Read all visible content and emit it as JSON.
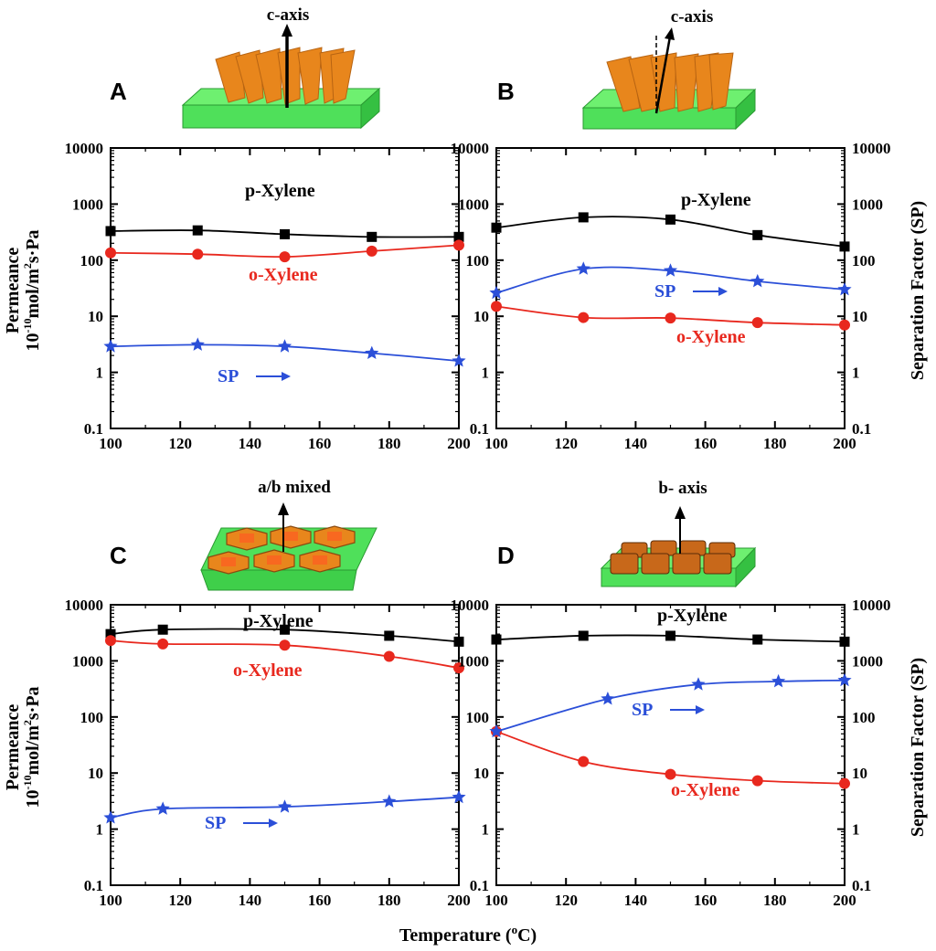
{
  "figure": {
    "xlabel_main": "Temperature (",
    "xlabel_sup": "o",
    "xlabel_end": "C)",
    "left_ylabel_line1": "Permeance",
    "left_ylabel_line2_a": "10",
    "left_ylabel_line2_sup1": "-10",
    "left_ylabel_line2_b": "mol/m",
    "left_ylabel_line2_sup2": "2",
    "left_ylabel_line2_c": "s·Pa",
    "right_ylabel": "Separation Factor (SP)"
  },
  "colors": {
    "p_xylene": "#000000",
    "o_xylene": "#e8281e",
    "sp": "#2b4fd8",
    "substrate": "#4fe05a",
    "crystal": "#e8861c"
  },
  "y_ticks": [
    "10000",
    "1000",
    "100",
    "10",
    "1",
    "0.1"
  ],
  "x_ticks": [
    "100",
    "120",
    "140",
    "160",
    "180",
    "200"
  ],
  "chart_data": [
    {
      "panel": "A",
      "type": "line",
      "orientation_label": "c-axis",
      "xlim": [
        100,
        200
      ],
      "ylim": [
        0.1,
        10000
      ],
      "yscale": "log",
      "series": [
        {
          "name": "p-Xylene",
          "marker": "square",
          "x": [
            100,
            125,
            150,
            175,
            200
          ],
          "values": [
            330,
            340,
            290,
            260,
            260
          ]
        },
        {
          "name": "o-Xylene",
          "marker": "circle",
          "x": [
            100,
            125,
            150,
            175,
            200
          ],
          "values": [
            135,
            128,
            115,
            145,
            185
          ]
        },
        {
          "name": "SP",
          "marker": "star",
          "x": [
            100,
            125,
            150,
            175,
            200
          ],
          "values": [
            2.9,
            3.1,
            2.9,
            2.2,
            1.6
          ]
        }
      ]
    },
    {
      "panel": "B",
      "type": "line",
      "orientation_label": "c-axis",
      "xlim": [
        100,
        200
      ],
      "ylim": [
        0.1,
        10000
      ],
      "yscale": "log",
      "series": [
        {
          "name": "p-Xylene",
          "marker": "square",
          "x": [
            100,
            125,
            150,
            175,
            200
          ],
          "values": [
            380,
            580,
            530,
            280,
            175
          ]
        },
        {
          "name": "o-Xylene",
          "marker": "circle",
          "x": [
            100,
            125,
            150,
            175,
            200
          ],
          "values": [
            15,
            9.5,
            9.3,
            7.7,
            7
          ]
        },
        {
          "name": "SP",
          "marker": "star",
          "x": [
            100,
            125,
            150,
            175,
            200
          ],
          "values": [
            26,
            70,
            65,
            42,
            30
          ]
        }
      ]
    },
    {
      "panel": "C",
      "type": "line",
      "orientation_label": "a/b mixed",
      "xlim": [
        100,
        200
      ],
      "ylim": [
        0.1,
        10000
      ],
      "yscale": "log",
      "series": [
        {
          "name": "p-Xylene",
          "marker": "square",
          "x": [
            100,
            115,
            150,
            180,
            200
          ],
          "values": [
            3000,
            3600,
            3600,
            2800,
            2200
          ]
        },
        {
          "name": "o-Xylene",
          "marker": "circle",
          "x": [
            100,
            115,
            150,
            180,
            200
          ],
          "values": [
            2300,
            2000,
            1900,
            1200,
            750
          ]
        },
        {
          "name": "SP",
          "marker": "star",
          "x": [
            100,
            115,
            150,
            180,
            200
          ],
          "values": [
            1.6,
            2.3,
            2.5,
            3.1,
            3.7
          ]
        }
      ]
    },
    {
      "panel": "D",
      "type": "line",
      "orientation_label": "b- axis",
      "xlim": [
        100,
        200
      ],
      "ylim": [
        0.1,
        10000
      ],
      "yscale": "log",
      "series": [
        {
          "name": "p-Xylene",
          "marker": "square",
          "x": [
            100,
            125,
            150,
            175,
            200
          ],
          "values": [
            2400,
            2800,
            2800,
            2400,
            2200
          ]
        },
        {
          "name": "o-Xylene",
          "marker": "circle",
          "x": [
            100,
            125,
            150,
            175,
            200
          ],
          "values": [
            55,
            16,
            9.5,
            7.3,
            6.5
          ]
        },
        {
          "name": "SP",
          "marker": "star",
          "x": [
            100,
            132,
            158,
            181,
            200
          ],
          "values": [
            55,
            210,
            380,
            430,
            450
          ]
        }
      ]
    }
  ]
}
